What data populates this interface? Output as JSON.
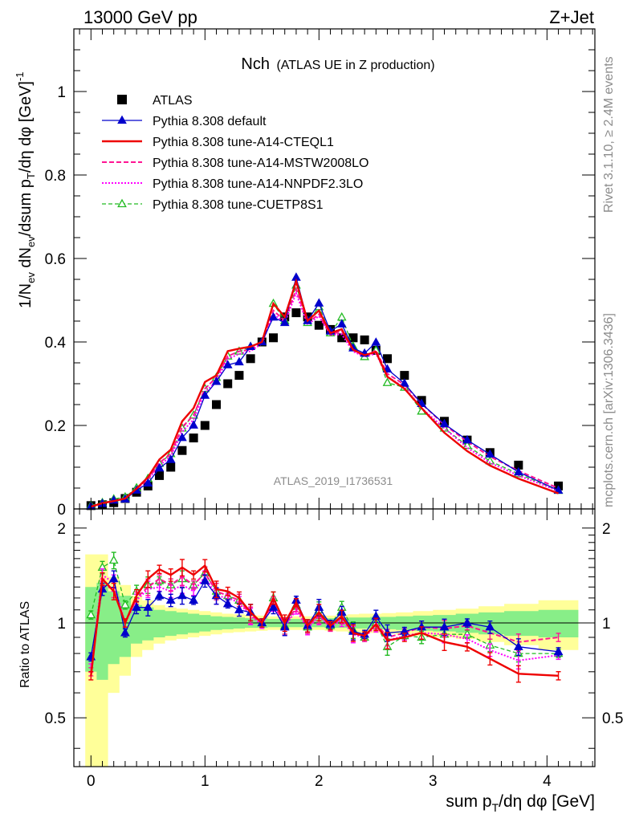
{
  "header": {
    "left": "13000 GeV pp",
    "right": "Z+Jet"
  },
  "side_labels": {
    "rivet": "Rivet 3.1.10, ≥ 2.4M events",
    "mcplots": "mcplots.cern.ch [arXiv:1306.3436]"
  },
  "chart_data": {
    "type": "line",
    "title_main": "Nch",
    "title_sub": "(ATLAS UE in Z production)",
    "watermark": "ATLAS_2019_I1736531",
    "ylabel_main": "1/N_ev dN_ev/dsum p_T/dη dφ [GeV]^-1",
    "ylabel_ratio": "Ratio to ATLAS",
    "xlabel": "sum p_T/dη dφ [GeV]",
    "xlim": [
      -0.15,
      4.42
    ],
    "ylim_main": [
      0,
      1.15
    ],
    "ylim_ratio": [
      0.35,
      2.3
    ],
    "x_ticks": [
      "0",
      "1",
      "2",
      "3",
      "4"
    ],
    "y_ticks_main": [
      "0",
      "0.2",
      "0.4",
      "0.6",
      "0.8",
      "1"
    ],
    "y_ticks_ratio": [
      "0.5",
      "1",
      "2"
    ],
    "grid": false,
    "legend_position": "top-left",
    "x": [
      0.0,
      0.1,
      0.2,
      0.3,
      0.4,
      0.5,
      0.6,
      0.7,
      0.8,
      0.9,
      1.0,
      1.1,
      1.2,
      1.3,
      1.4,
      1.5,
      1.6,
      1.7,
      1.8,
      1.9,
      2.0,
      2.1,
      2.2,
      2.3,
      2.4,
      2.5,
      2.6,
      2.75,
      2.9,
      3.1,
      3.3,
      3.5,
      3.75,
      4.1
    ],
    "atlas": [
      0.008,
      0.01,
      0.015,
      0.025,
      0.04,
      0.055,
      0.08,
      0.1,
      0.14,
      0.17,
      0.2,
      0.25,
      0.3,
      0.32,
      0.36,
      0.4,
      0.41,
      0.46,
      0.47,
      0.46,
      0.44,
      0.43,
      0.41,
      0.41,
      0.405,
      0.38,
      0.36,
      0.32,
      0.26,
      0.21,
      0.165,
      0.135,
      0.105,
      0.055
    ],
    "atlas_band_inner": [
      0.7,
      0.66,
      0.74,
      0.78,
      0.86,
      0.88,
      0.9,
      0.91,
      0.92,
      0.93,
      0.94,
      0.95,
      0.955,
      0.96,
      0.965,
      0.965,
      0.97,
      0.97,
      0.97,
      0.97,
      0.97,
      0.965,
      0.965,
      0.96,
      0.96,
      0.955,
      0.955,
      0.95,
      0.945,
      0.94,
      0.93,
      0.92,
      0.91,
      0.9
    ],
    "atlas_band_outer": [
      0.35,
      0.35,
      0.6,
      0.68,
      0.78,
      0.82,
      0.86,
      0.88,
      0.89,
      0.9,
      0.91,
      0.92,
      0.93,
      0.935,
      0.94,
      0.945,
      0.95,
      0.95,
      0.95,
      0.95,
      0.95,
      0.945,
      0.94,
      0.935,
      0.93,
      0.93,
      0.925,
      0.92,
      0.91,
      0.9,
      0.89,
      0.87,
      0.85,
      0.82
    ],
    "series": [
      {
        "name": "ATLAS",
        "color": "#000000",
        "ratio": [
          1,
          1,
          1,
          1,
          1,
          1,
          1,
          1,
          1,
          1,
          1,
          1,
          1,
          1,
          1,
          1,
          1,
          1,
          1,
          1,
          1,
          1,
          1,
          1,
          1,
          1,
          1,
          1,
          1,
          1,
          1,
          1,
          1,
          1
        ]
      },
      {
        "name": "Pythia 8.308 default",
        "color": "#0000cc",
        "ratio": [
          0.78,
          1.28,
          1.38,
          0.93,
          1.12,
          1.12,
          1.22,
          1.18,
          1.22,
          1.18,
          1.36,
          1.22,
          1.15,
          1.1,
          1.08,
          1.0,
          1.12,
          0.97,
          1.18,
          0.98,
          1.12,
          0.99,
          1.08,
          0.94,
          0.92,
          1.05,
          0.93,
          0.94,
          0.97,
          0.97,
          1.0,
          0.97,
          0.84,
          0.81
        ]
      },
      {
        "name": "Pythia 8.308 tune-A14-CTEQL1",
        "color": "#ee0000",
        "ratio": [
          0.68,
          1.38,
          1.26,
          1.0,
          1.22,
          1.38,
          1.48,
          1.42,
          1.5,
          1.42,
          1.52,
          1.28,
          1.26,
          1.2,
          1.08,
          1.0,
          1.2,
          1.0,
          1.16,
          0.98,
          1.08,
          0.98,
          1.05,
          0.93,
          0.91,
          0.99,
          0.88,
          0.9,
          0.93,
          0.87,
          0.84,
          0.77,
          0.69,
          0.68
        ]
      },
      {
        "name": "Pythia 8.308 tune-A14-MSTW2008LO",
        "color": "#ff1493",
        "ratio": [
          0.7,
          1.32,
          1.28,
          1.0,
          1.2,
          1.3,
          1.38,
          1.32,
          1.4,
          1.32,
          1.44,
          1.26,
          1.22,
          1.18,
          1.06,
          1.0,
          1.16,
          0.98,
          1.12,
          0.97,
          1.06,
          0.97,
          1.04,
          0.93,
          0.9,
          1.0,
          0.9,
          0.93,
          0.97,
          0.96,
          0.98,
          0.93,
          0.87,
          0.9
        ]
      },
      {
        "name": "Pythia 8.308 tune-A14-NNPDF2.3LO",
        "color": "#ff00ff",
        "ratio": [
          0.72,
          1.42,
          1.34,
          1.0,
          1.18,
          1.28,
          1.3,
          1.26,
          1.32,
          1.26,
          1.4,
          1.22,
          1.2,
          1.16,
          1.05,
          0.99,
          1.14,
          0.97,
          1.1,
          0.96,
          1.05,
          0.97,
          1.02,
          0.92,
          0.9,
          0.98,
          0.88,
          0.91,
          0.93,
          0.92,
          0.89,
          0.82,
          0.76,
          0.79
        ]
      },
      {
        "name": "Pythia 8.308 tune-CUETP8S1",
        "color": "#22bb22",
        "ratio": [
          1.06,
          1.5,
          1.58,
          1.14,
          1.26,
          1.32,
          1.36,
          1.32,
          1.38,
          1.32,
          1.44,
          1.26,
          1.22,
          1.18,
          1.08,
          1.0,
          1.2,
          0.98,
          1.14,
          0.97,
          1.1,
          0.98,
          1.12,
          0.95,
          0.9,
          1.0,
          0.84,
          0.91,
          0.9,
          0.92,
          0.92,
          0.85,
          0.8,
          0.8
        ]
      }
    ]
  }
}
